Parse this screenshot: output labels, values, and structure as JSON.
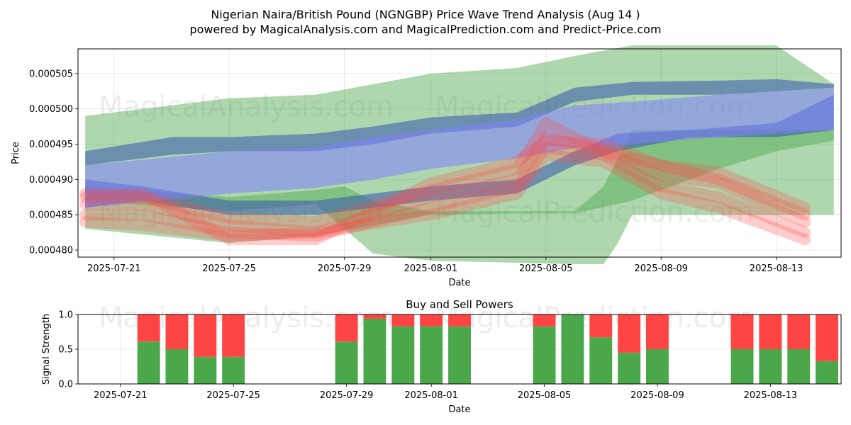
{
  "title_line1": "Nigerian Naira/British Pound (NGNGBP) Price Wave Trend Analysis (Aug 14 )",
  "title_line2": "powered by MagicalAnalysis.com and MagicalPrediction.com and Predict-Price.com",
  "watermark_left": "MagicalAnalysis.com",
  "watermark_right": "MagicalPrediction.com",
  "colors": {
    "green_band": "#4ca64c",
    "blue_band": "#3f5fad",
    "purple_band": "#8080ff",
    "red_wave": "#ff4d4d",
    "buy": "#4aa84a",
    "sell": "#ff4444"
  },
  "chart_data": [
    {
      "type": "area",
      "title": "",
      "xlabel": "Date",
      "ylabel": "Price",
      "xlim": [
        "2025-07-19T18:00",
        "2025-08-15T06:00"
      ],
      "ylim": [
        0.000479,
        0.0005085
      ],
      "x_ticks": [
        "2025-07-21",
        "2025-07-25",
        "2025-07-29",
        "2025-08-01",
        "2025-08-05",
        "2025-08-09",
        "2025-08-13"
      ],
      "y_ticks": [
        "0.000480",
        "0.000485",
        "0.000490",
        "0.000495",
        "0.000500",
        "0.000505"
      ],
      "grid": true,
      "bands": [
        {
          "color": "green",
          "x": [
            "2025-07-20",
            "2025-07-25",
            "2025-07-28",
            "2025-08-01",
            "2025-08-04",
            "2025-08-06",
            "2025-08-08",
            "2025-08-11",
            "2025-08-13",
            "2025-08-15"
          ],
          "upper": [
            0.000499,
            0.0005015,
            0.000502,
            0.000505,
            0.0005058,
            0.0005075,
            0.000509,
            0.000509,
            0.000509,
            0.0005035
          ],
          "lower": [
            0.000483,
            0.000481,
            0.000482,
            0.000485,
            0.0004852,
            0.0004852,
            0.000487,
            0.0004915,
            0.000494,
            0.0004955
          ]
        },
        {
          "color": "green",
          "x": [
            "2025-07-20",
            "2025-07-25",
            "2025-07-28",
            "2025-07-29",
            "2025-07-30",
            "2025-08-01",
            "2025-08-06",
            "2025-08-07",
            "2025-08-07T12:00",
            "2025-08-08",
            "2025-08-15"
          ],
          "upper": [
            0.000489,
            0.0004875,
            0.0004885,
            0.000489,
            0.000487,
            0.0004855,
            0.0004855,
            0.000489,
            0.000493,
            0.000497,
            0.000497
          ],
          "lower": [
            0.000487,
            0.0004855,
            0.0004865,
            0.000483,
            0.0004795,
            0.0004785,
            0.000478,
            0.000478,
            0.000481,
            0.000485,
            0.000485
          ]
        },
        {
          "color": "blue",
          "x": [
            "2025-07-20",
            "2025-07-23",
            "2025-07-25",
            "2025-07-28",
            "2025-07-30",
            "2025-08-01",
            "2025-08-04",
            "2025-08-06",
            "2025-08-08",
            "2025-08-11",
            "2025-08-13",
            "2025-08-15"
          ],
          "upper": [
            0.000494,
            0.000496,
            0.000496,
            0.0004965,
            0.0004975,
            0.0004988,
            0.0004995,
            0.000503,
            0.0005038,
            0.000504,
            0.0005042,
            0.0005035
          ],
          "lower": [
            0.000492,
            0.0004935,
            0.000494,
            0.000494,
            0.000495,
            0.0004965,
            0.0004975,
            0.000501,
            0.000502,
            0.000502,
            0.0005025,
            0.000503
          ]
        },
        {
          "color": "blue",
          "x": [
            "2025-07-20",
            "2025-07-22",
            "2025-07-25",
            "2025-07-28",
            "2025-07-30",
            "2025-08-01",
            "2025-08-04",
            "2025-08-06",
            "2025-08-07T12:00",
            "2025-08-10",
            "2025-08-13",
            "2025-08-15"
          ],
          "upper": [
            0.00049,
            0.000489,
            0.000487,
            0.000487,
            0.000488,
            0.000489,
            0.00049,
            0.000494,
            0.0004965,
            0.000497,
            0.000498,
            0.000502
          ],
          "lower": [
            0.000486,
            0.000487,
            0.000485,
            0.000485,
            0.000486,
            0.000487,
            0.000488,
            0.000492,
            0.000494,
            0.000496,
            0.000496,
            0.000497
          ]
        },
        {
          "color": "purple",
          "x": [
            "2025-07-20",
            "2025-07-25",
            "2025-07-28",
            "2025-07-30",
            "2025-08-01",
            "2025-08-04",
            "2025-08-06",
            "2025-08-08",
            "2025-08-11",
            "2025-08-13",
            "2025-08-15"
          ],
          "upper": [
            0.000492,
            0.000494,
            0.0004945,
            0.000496,
            0.000497,
            0.0004985,
            0.0005005,
            0.000501,
            0.000502,
            0.0005025,
            0.000503
          ],
          "lower": [
            0.000486,
            0.000488,
            0.0004888,
            0.00049,
            0.0004915,
            0.000493,
            0.0004945,
            0.000495,
            0.000496,
            0.0004965,
            0.000497
          ]
        }
      ],
      "waves": [
        {
          "x": [
            "2025-07-20",
            "2025-07-22",
            "2025-07-25",
            "2025-07-28",
            "2025-08-01",
            "2025-08-04",
            "2025-08-05",
            "2025-08-07",
            "2025-08-09",
            "2025-08-11",
            "2025-08-14"
          ],
          "y": [
            0.000488,
            0.0004875,
            0.0004845,
            0.000484,
            0.0004885,
            0.0004915,
            0.000498,
            0.000494,
            0.000492,
            0.000491,
            0.000486
          ]
        },
        {
          "x": [
            "2025-07-20",
            "2025-07-22",
            "2025-07-25",
            "2025-07-28",
            "2025-08-01",
            "2025-08-04",
            "2025-08-05",
            "2025-08-07",
            "2025-08-09",
            "2025-08-11",
            "2025-08-14"
          ],
          "y": [
            0.0004865,
            0.0004865,
            0.0004835,
            0.0004825,
            0.0004875,
            0.00049,
            0.000496,
            0.000494,
            0.0004905,
            0.0004895,
            0.000484
          ]
        },
        {
          "x": [
            "2025-07-20",
            "2025-07-22",
            "2025-07-25",
            "2025-07-28",
            "2025-08-01",
            "2025-08-04",
            "2025-08-05",
            "2025-08-07",
            "2025-08-09",
            "2025-08-11",
            "2025-08-14"
          ],
          "y": [
            0.000485,
            0.000485,
            0.0004825,
            0.000482,
            0.000486,
            0.000489,
            0.0004945,
            0.0004935,
            0.000489,
            0.0004875,
            0.0004825
          ]
        },
        {
          "x": [
            "2025-07-20",
            "2025-07-22",
            "2025-07-25",
            "2025-07-28",
            "2025-08-01",
            "2025-08-04",
            "2025-08-05",
            "2025-08-07",
            "2025-08-09",
            "2025-08-11",
            "2025-08-14"
          ],
          "y": [
            0.0004875,
            0.000488,
            0.0004815,
            0.0004815,
            0.0004895,
            0.0004925,
            0.0004955,
            0.000495,
            0.000492,
            0.00049,
            0.000485
          ]
        },
        {
          "x": [
            "2025-07-20",
            "2025-07-22",
            "2025-07-25",
            "2025-07-28",
            "2025-08-01",
            "2025-08-04",
            "2025-08-05",
            "2025-08-07",
            "2025-08-09",
            "2025-08-11",
            "2025-08-14"
          ],
          "y": [
            0.000484,
            0.0004835,
            0.000482,
            0.0004825,
            0.000485,
            0.000488,
            0.0004935,
            0.0004925,
            0.000488,
            0.000486,
            0.0004815
          ]
        }
      ]
    },
    {
      "type": "bar",
      "title": "Buy and Sell Powers",
      "xlabel": "Date",
      "ylabel": "Signal Strength",
      "ylim": [
        0,
        1
      ],
      "y_ticks": [
        "0.0",
        "0.5",
        "1.0"
      ],
      "x_ticks": [
        "2025-07-21",
        "2025-07-25",
        "2025-07-29",
        "2025-08-01",
        "2025-08-05",
        "2025-08-09",
        "2025-08-13"
      ],
      "grid": true,
      "dates": [
        "2025-07-21",
        "2025-07-22",
        "2025-07-23",
        "2025-07-24",
        "2025-07-28",
        "2025-07-29",
        "2025-07-30",
        "2025-07-31",
        "2025-08-01",
        "2025-08-04",
        "2025-08-05",
        "2025-08-06",
        "2025-08-07",
        "2025-08-08",
        "2025-08-11",
        "2025-08-12",
        "2025-08-13",
        "2025-08-14"
      ],
      "series": [
        {
          "name": "",
          "values": [
            0.61,
            0.5,
            0.39,
            0.39,
            0.61,
            0.94,
            0.83,
            0.83,
            0.83,
            0.83,
            1.0,
            0.67,
            0.45,
            0.5,
            0.5,
            0.5,
            0.5,
            0.33
          ]
        },
        {
          "name": "",
          "values": [
            0.39,
            0.5,
            0.61,
            0.61,
            0.39,
            0.06,
            0.17,
            0.17,
            0.17,
            0.17,
            0.0,
            0.33,
            0.55,
            0.5,
            0.5,
            0.5,
            0.5,
            0.67
          ]
        }
      ]
    }
  ]
}
